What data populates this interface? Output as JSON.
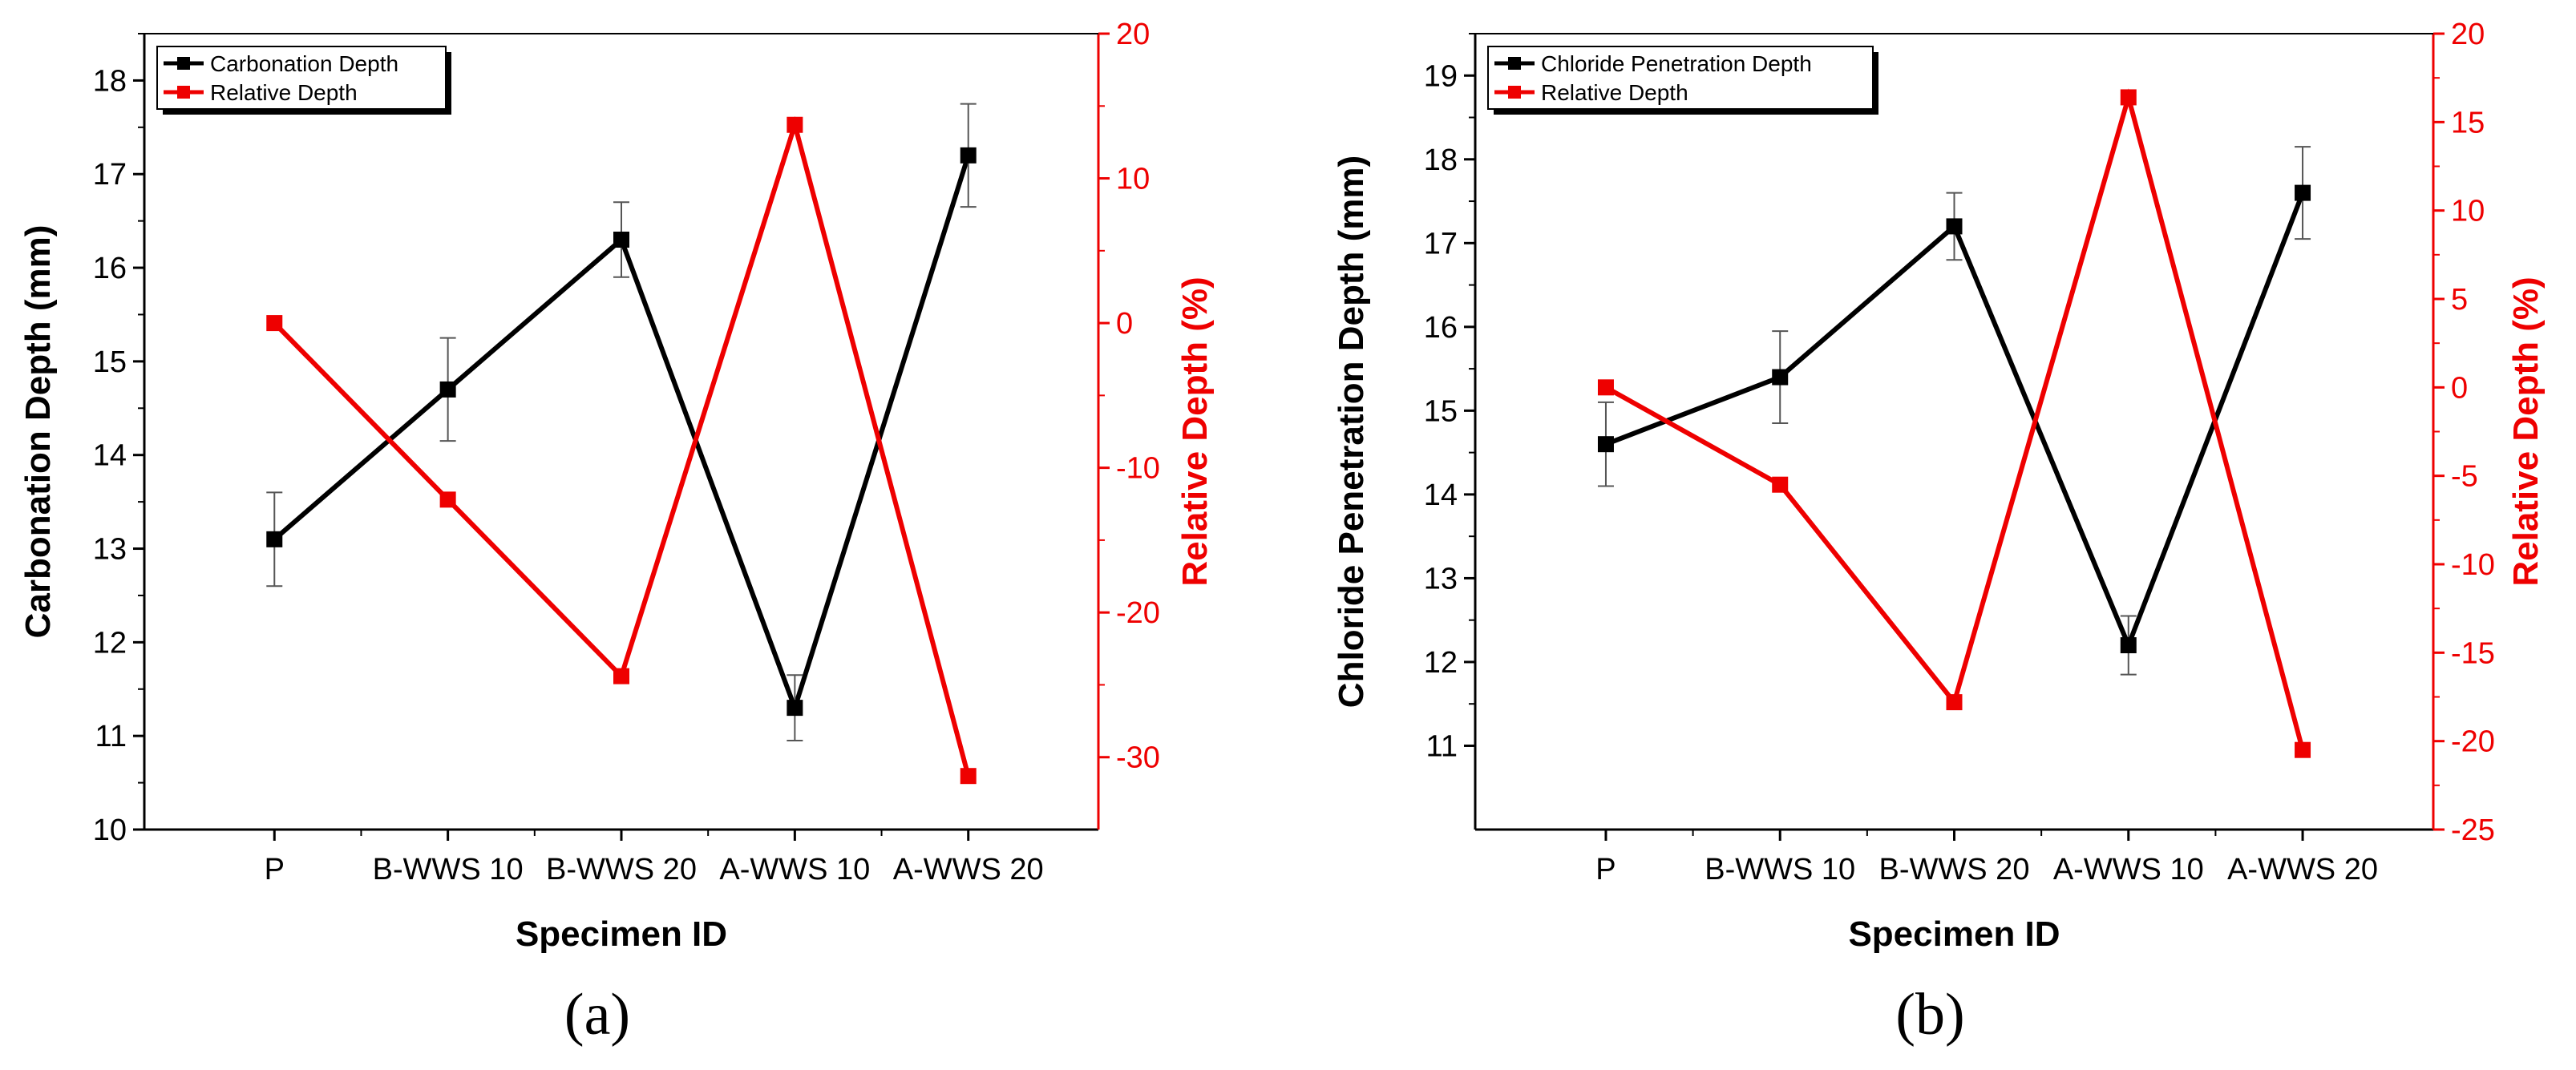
{
  "colors": {
    "primary": "#000000",
    "relative": "#ee0000",
    "errorbar": "#555555"
  },
  "chart_data": [
    {
      "type": "line",
      "panel_label": "(a)",
      "title": "",
      "xlabel": "Specimen ID",
      "ylabel_left": "Carbonation Depth (mm)",
      "ylabel_right": "Relative Depth (%)",
      "categories": [
        "P",
        "B-WWS 10",
        "B-WWS 20",
        "A-WWS 10",
        "A-WWS 20"
      ],
      "y_left_range": [
        10,
        18.5
      ],
      "y_left_ticks": [
        "10",
        "11",
        "12",
        "13",
        "14",
        "15",
        "16",
        "17",
        "18"
      ],
      "y_right_range": [
        -35,
        20
      ],
      "y_right_ticks": [
        "-30",
        "-20",
        "-10",
        "0",
        "10",
        "20"
      ],
      "legend": [
        "Carbonation Depth",
        "Relative Depth"
      ],
      "legend_position": "top-left",
      "series": [
        {
          "name": "Carbonation Depth",
          "axis": "left",
          "values": [
            13.1,
            14.7,
            16.3,
            11.3,
            17.2
          ],
          "errors": [
            0.5,
            0.55,
            0.4,
            0.35,
            0.55
          ]
        },
        {
          "name": "Relative Depth",
          "axis": "right",
          "values": [
            0,
            -12.2,
            -24.4,
            13.7,
            -31.3
          ]
        }
      ]
    },
    {
      "type": "line",
      "panel_label": "(b)",
      "title": "",
      "xlabel": "Specimen ID",
      "ylabel_left": "Chloride Penetration Depth (mm)",
      "ylabel_right": "Relative Depth (%)",
      "categories": [
        "P",
        "B-WWS 10",
        "B-WWS 20",
        "A-WWS 10",
        "A-WWS 20"
      ],
      "y_left_range": [
        10,
        19.5
      ],
      "y_left_ticks": [
        "11",
        "12",
        "13",
        "14",
        "15",
        "16",
        "17",
        "18",
        "19"
      ],
      "y_right_range": [
        -25,
        20
      ],
      "y_right_ticks": [
        "-25",
        "-20",
        "-15",
        "-10",
        "-5",
        "0",
        "5",
        "10",
        "15",
        "20"
      ],
      "legend": [
        "Chloride Penetration Depth",
        "Relative Depth"
      ],
      "legend_position": "top-left",
      "series": [
        {
          "name": "Chloride Penetration Depth",
          "axis": "left",
          "values": [
            14.6,
            15.4,
            17.2,
            12.2,
            17.6
          ],
          "errors": [
            0.5,
            0.55,
            0.4,
            0.35,
            0.55
          ]
        },
        {
          "name": "Relative Depth",
          "axis": "right",
          "values": [
            0,
            -5.5,
            -17.8,
            16.4,
            -20.5
          ]
        }
      ]
    }
  ]
}
